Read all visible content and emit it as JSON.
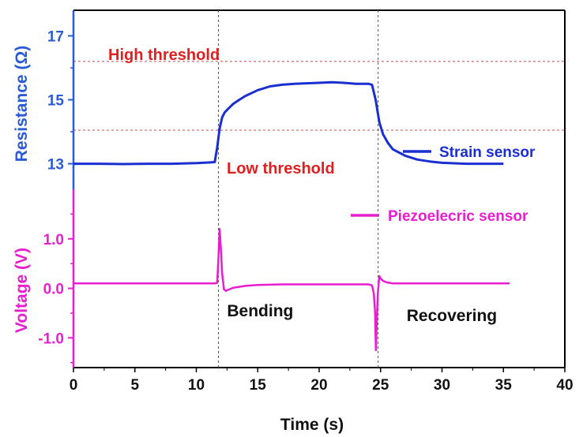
{
  "chart_data": {
    "type": "line",
    "xlabel": "Time (s)",
    "xlim": [
      0,
      40
    ],
    "x_ticks": [
      "0",
      "5",
      "10",
      "15",
      "20",
      "25",
      "30",
      "35",
      "40"
    ],
    "top_axis": {
      "ylabel": "Resistance (Ω)",
      "ylim": [
        12.2,
        17.8
      ],
      "ticks": [
        {
          "value": 13,
          "label": "13"
        },
        {
          "value": 15,
          "label": "15"
        },
        {
          "value": 17,
          "label": "17"
        }
      ],
      "color": "#2a5bd7"
    },
    "bottom_axis": {
      "ylabel": "Voltage (V)",
      "ylim": [
        -1.6,
        2.0
      ],
      "ticks": [
        {
          "value": 1.0,
          "label": "1.0"
        },
        {
          "value": 0.0,
          "label": "0.0"
        },
        {
          "value": -1.0,
          "label": "-1.0"
        }
      ],
      "color": "#e81ecf"
    },
    "thresholds": [
      {
        "label": "High threshold",
        "value": 16.2,
        "color": "#e02020"
      },
      {
        "label": "Low threshold",
        "value": 14.05,
        "color": "#e02020"
      }
    ],
    "vlines": [
      11.8,
      24.8
    ],
    "annotations": [
      {
        "text": "Bending",
        "x": 15.2,
        "y": -0.45
      },
      {
        "text": "Recovering",
        "x": 30.8,
        "y": -0.55
      }
    ],
    "series": [
      {
        "name": "Strain sensor",
        "axis": "top",
        "color": "#1a2fd0",
        "x": [
          0,
          2,
          4,
          6,
          8,
          10,
          11,
          11.5,
          11.7,
          11.9,
          12.1,
          12.3,
          12.6,
          13.0,
          13.5,
          14,
          15,
          16,
          17,
          18,
          20,
          21,
          22,
          23,
          24,
          24.3,
          24.6,
          24.9,
          25.2,
          25.6,
          26,
          27,
          28,
          29,
          30,
          32,
          34,
          35
        ],
        "y": [
          13.0,
          13.0,
          12.99,
          13.0,
          13.0,
          13.02,
          13.04,
          13.05,
          13.5,
          14.1,
          14.45,
          14.6,
          14.72,
          14.87,
          15.0,
          15.12,
          15.3,
          15.42,
          15.47,
          15.5,
          15.53,
          15.55,
          15.53,
          15.5,
          15.5,
          15.47,
          15.0,
          14.3,
          13.92,
          13.65,
          13.45,
          13.25,
          13.13,
          13.07,
          13.03,
          13.0,
          13.0,
          13.0
        ]
      },
      {
        "name": "Piezoelecric sensor",
        "axis": "bottom",
        "color": "#e81ecf",
        "x": [
          0,
          5,
          10,
          11.5,
          11.7,
          11.8,
          11.9,
          12.0,
          12.1,
          12.25,
          12.4,
          12.6,
          13,
          14,
          15,
          17,
          20,
          23,
          24,
          24.3,
          24.45,
          24.55,
          24.62,
          24.7,
          24.78,
          24.9,
          25.0,
          25.2,
          25.5,
          26,
          27,
          30,
          33,
          35.5
        ],
        "y": [
          0.1,
          0.1,
          0.1,
          0.1,
          0.11,
          0.6,
          1.2,
          0.8,
          0.3,
          -0.02,
          -0.05,
          -0.03,
          0.01,
          0.05,
          0.07,
          0.08,
          0.08,
          0.08,
          0.08,
          0.06,
          -0.1,
          -0.5,
          -1.25,
          -0.6,
          -0.1,
          0.25,
          0.2,
          0.15,
          0.12,
          0.1,
          0.1,
          0.1,
          0.1,
          0.1
        ]
      }
    ]
  }
}
